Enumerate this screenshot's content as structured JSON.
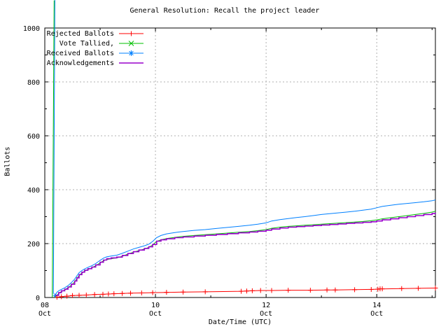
{
  "title": "General Resolution: Recall the project leader",
  "chart_data": {
    "type": "line",
    "title": "General Resolution: Recall the project leader",
    "xlabel": "Date/Time (UTC)",
    "ylabel": "Ballots",
    "xlim_days_october": [
      8,
      15.06
    ],
    "ylim": [
      0,
      1000
    ],
    "grid": "dotted gray at major ticks",
    "legend_position": "top-left inside",
    "background": "#ffffff",
    "x_axis": {
      "label": "Date/Time (UTC)",
      "major_ticks": [
        {
          "day": 8,
          "line1": "08",
          "line2": "Oct"
        },
        {
          "day": 10,
          "line1": "10",
          "line2": "Oct"
        },
        {
          "day": 12,
          "line1": "12",
          "line2": "Oct"
        },
        {
          "day": 14,
          "line1": "14",
          "line2": "Oct"
        }
      ],
      "minor_tick_days": [
        9,
        11,
        13,
        15
      ]
    },
    "y_axis": {
      "label": "Ballots",
      "major_ticks": [
        {
          "v": 0,
          "label": "0"
        },
        {
          "v": 200,
          "label": "200"
        },
        {
          "v": 400,
          "label": "400"
        },
        {
          "v": 600,
          "label": "600"
        },
        {
          "v": 800,
          "label": "800"
        },
        {
          "v": 1000,
          "label": "1000"
        }
      ],
      "minor_tick_values": [
        100,
        300,
        500,
        700,
        900
      ]
    },
    "legend": [
      {
        "label": "Rejected Ballots",
        "series": "rejected",
        "color": "#ff0000",
        "marker": "plus"
      },
      {
        "label": "Vote Tallied,",
        "series": "tallied",
        "color": "#00c000",
        "marker": "cross"
      },
      {
        "label": "Received Ballots",
        "series": "received",
        "color": "#0080ff",
        "marker": "asterisk"
      },
      {
        "label": "Acknowledgements",
        "series": "acknowledgements",
        "color": "#9900cc",
        "marker": "none"
      }
    ],
    "series": [
      {
        "name": "rejected",
        "color": "#ff0000",
        "marker": "plus",
        "marker_mode": "points",
        "line_width": 1,
        "interp": "linear",
        "points": [
          [
            8.22,
            1
          ],
          [
            8.3,
            3
          ],
          [
            8.4,
            5
          ],
          [
            8.5,
            7
          ],
          [
            8.62,
            8
          ],
          [
            8.75,
            9
          ],
          [
            8.9,
            11
          ],
          [
            9.05,
            12
          ],
          [
            9.15,
            13
          ],
          [
            9.25,
            14
          ],
          [
            9.4,
            15
          ],
          [
            9.55,
            16
          ],
          [
            9.75,
            17
          ],
          [
            9.95,
            18
          ],
          [
            10.2,
            19
          ],
          [
            10.5,
            20
          ],
          [
            10.9,
            21
          ],
          [
            11.55,
            23
          ],
          [
            11.65,
            24
          ],
          [
            11.75,
            25
          ],
          [
            11.9,
            26
          ],
          [
            12.1,
            26
          ],
          [
            12.4,
            27
          ],
          [
            12.8,
            27
          ],
          [
            13.1,
            28
          ],
          [
            13.25,
            28
          ],
          [
            13.6,
            29
          ],
          [
            13.9,
            30
          ],
          [
            14.02,
            31
          ],
          [
            14.06,
            32
          ],
          [
            14.1,
            32
          ],
          [
            14.45,
            33
          ],
          [
            14.75,
            34
          ],
          [
            15.06,
            35
          ]
        ]
      },
      {
        "name": "tallied",
        "color": "#00c000",
        "marker": "cross",
        "marker_mode": "dense",
        "line_width": 1,
        "interp": "linear",
        "points": [
          [
            8.18,
            1
          ],
          [
            8.22,
            8
          ],
          [
            8.26,
            16
          ],
          [
            8.3,
            22
          ],
          [
            8.36,
            28
          ],
          [
            8.42,
            36
          ],
          [
            8.48,
            46
          ],
          [
            8.54,
            58
          ],
          [
            8.58,
            70
          ],
          [
            8.62,
            82
          ],
          [
            8.67,
            91
          ],
          [
            8.72,
            98
          ],
          [
            8.78,
            104
          ],
          [
            8.85,
            110
          ],
          [
            8.92,
            118
          ],
          [
            9.0,
            128
          ],
          [
            9.06,
            136
          ],
          [
            9.12,
            141
          ],
          [
            9.2,
            144
          ],
          [
            9.3,
            147
          ],
          [
            9.4,
            153
          ],
          [
            9.5,
            161
          ],
          [
            9.6,
            168
          ],
          [
            9.7,
            174
          ],
          [
            9.8,
            180
          ],
          [
            9.88,
            186
          ],
          [
            9.95,
            195
          ],
          [
            10.02,
            208
          ],
          [
            10.1,
            214
          ],
          [
            10.2,
            219
          ],
          [
            10.35,
            223
          ],
          [
            10.5,
            227
          ],
          [
            10.7,
            230
          ],
          [
            10.9,
            233
          ],
          [
            11.1,
            236
          ],
          [
            11.3,
            239
          ],
          [
            11.5,
            242
          ],
          [
            11.7,
            245
          ],
          [
            11.85,
            248
          ],
          [
            12.0,
            252
          ],
          [
            12.1,
            257
          ],
          [
            12.25,
            261
          ],
          [
            12.4,
            264
          ],
          [
            12.55,
            266
          ],
          [
            12.7,
            268
          ],
          [
            12.85,
            270
          ],
          [
            13.0,
            272
          ],
          [
            13.15,
            274
          ],
          [
            13.3,
            276
          ],
          [
            13.45,
            278
          ],
          [
            13.6,
            280
          ],
          [
            13.75,
            282
          ],
          [
            13.9,
            285
          ],
          [
            14.0,
            288
          ],
          [
            14.1,
            292
          ],
          [
            14.25,
            296
          ],
          [
            14.4,
            300
          ],
          [
            14.55,
            304
          ],
          [
            14.7,
            308
          ],
          [
            14.85,
            312
          ],
          [
            15.0,
            317
          ],
          [
            15.06,
            320
          ]
        ]
      },
      {
        "name": "received",
        "color": "#0080ff",
        "marker": "asterisk",
        "marker_mode": "dense",
        "line_width": 1,
        "interp": "linear",
        "points": [
          [
            8.17,
            2
          ],
          [
            8.2,
            12
          ],
          [
            8.22,
            20
          ],
          [
            8.26,
            26
          ],
          [
            8.3,
            30
          ],
          [
            8.36,
            36
          ],
          [
            8.42,
            44
          ],
          [
            8.48,
            55
          ],
          [
            8.54,
            68
          ],
          [
            8.58,
            80
          ],
          [
            8.62,
            92
          ],
          [
            8.67,
            100
          ],
          [
            8.72,
            106
          ],
          [
            8.78,
            112
          ],
          [
            8.85,
            118
          ],
          [
            8.92,
            126
          ],
          [
            9.0,
            138
          ],
          [
            9.06,
            146
          ],
          [
            9.12,
            151
          ],
          [
            9.2,
            154
          ],
          [
            9.3,
            157
          ],
          [
            9.4,
            164
          ],
          [
            9.5,
            172
          ],
          [
            9.6,
            180
          ],
          [
            9.7,
            186
          ],
          [
            9.8,
            192
          ],
          [
            9.88,
            198
          ],
          [
            9.95,
            208
          ],
          [
            10.02,
            222
          ],
          [
            10.1,
            230
          ],
          [
            10.2,
            236
          ],
          [
            10.35,
            241
          ],
          [
            10.5,
            245
          ],
          [
            10.7,
            249
          ],
          [
            10.9,
            252
          ],
          [
            11.1,
            256
          ],
          [
            11.3,
            260
          ],
          [
            11.5,
            264
          ],
          [
            11.7,
            268
          ],
          [
            11.85,
            272
          ],
          [
            12.0,
            277
          ],
          [
            12.1,
            284
          ],
          [
            12.25,
            289
          ],
          [
            12.4,
            293
          ],
          [
            12.55,
            297
          ],
          [
            12.7,
            300
          ],
          [
            12.85,
            304
          ],
          [
            13.0,
            308
          ],
          [
            13.15,
            311
          ],
          [
            13.3,
            314
          ],
          [
            13.45,
            317
          ],
          [
            13.6,
            320
          ],
          [
            13.75,
            324
          ],
          [
            13.9,
            328
          ],
          [
            14.0,
            333
          ],
          [
            14.1,
            338
          ],
          [
            14.25,
            342
          ],
          [
            14.4,
            346
          ],
          [
            14.55,
            349
          ],
          [
            14.7,
            352
          ],
          [
            14.85,
            355
          ],
          [
            15.0,
            359
          ],
          [
            15.06,
            362
          ]
        ]
      },
      {
        "name": "acknowledgements",
        "color": "#9900cc",
        "marker": "none",
        "marker_mode": "none",
        "line_width": 1.6,
        "interp": "step",
        "points": [
          [
            8.19,
            8
          ],
          [
            8.25,
            18
          ],
          [
            8.3,
            25
          ],
          [
            8.36,
            31
          ],
          [
            8.42,
            39
          ],
          [
            8.48,
            49
          ],
          [
            8.54,
            61
          ],
          [
            8.58,
            73
          ],
          [
            8.62,
            85
          ],
          [
            8.67,
            94
          ],
          [
            8.72,
            101
          ],
          [
            8.78,
            107
          ],
          [
            8.85,
            113
          ],
          [
            8.92,
            121
          ],
          [
            9.0,
            131
          ],
          [
            9.06,
            139
          ],
          [
            9.12,
            144
          ],
          [
            9.2,
            147
          ],
          [
            9.3,
            150
          ],
          [
            9.4,
            156
          ],
          [
            9.5,
            163
          ],
          [
            9.6,
            170
          ],
          [
            9.7,
            176
          ],
          [
            9.8,
            182
          ],
          [
            9.88,
            188
          ],
          [
            9.95,
            197
          ],
          [
            10.02,
            209
          ],
          [
            10.1,
            214
          ],
          [
            10.2,
            218
          ],
          [
            10.35,
            222
          ],
          [
            10.5,
            225
          ],
          [
            10.7,
            228
          ],
          [
            10.9,
            231
          ],
          [
            11.1,
            234
          ],
          [
            11.3,
            237
          ],
          [
            11.5,
            240
          ],
          [
            11.7,
            243
          ],
          [
            11.85,
            246
          ],
          [
            12.0,
            250
          ],
          [
            12.1,
            254
          ],
          [
            12.25,
            258
          ],
          [
            12.4,
            261
          ],
          [
            12.55,
            263
          ],
          [
            12.7,
            265
          ],
          [
            12.85,
            267
          ],
          [
            13.0,
            269
          ],
          [
            13.15,
            271
          ],
          [
            13.3,
            273
          ],
          [
            13.45,
            275
          ],
          [
            13.6,
            277
          ],
          [
            13.75,
            279
          ],
          [
            13.9,
            281
          ],
          [
            14.0,
            284
          ],
          [
            14.1,
            288
          ],
          [
            14.25,
            292
          ],
          [
            14.4,
            296
          ],
          [
            14.55,
            300
          ],
          [
            14.7,
            304
          ],
          [
            14.85,
            308
          ],
          [
            15.0,
            312
          ],
          [
            15.06,
            314
          ]
        ]
      }
    ],
    "colors": {
      "border": "#000000",
      "grid": "#b0b0b0",
      "text": "#000000"
    }
  }
}
